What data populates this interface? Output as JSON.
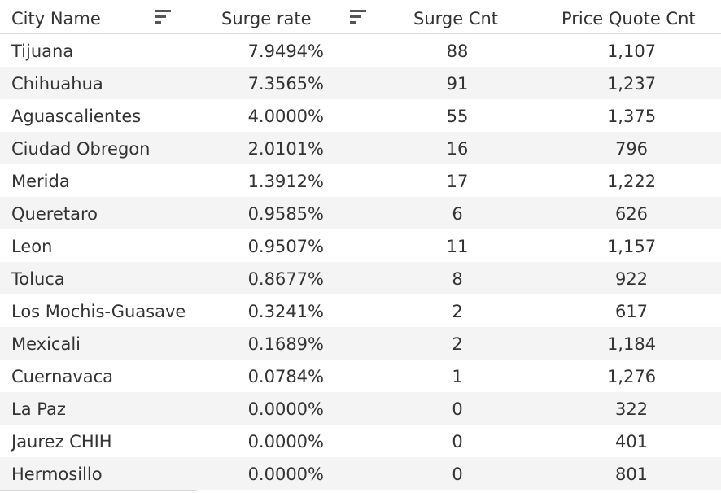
{
  "header": {
    "city_name": "City Name",
    "surge_rate": "Surge rate",
    "surge_cnt": "Surge Cnt",
    "price_quote_cnt": "Price Quote Cnt"
  },
  "icons": {
    "sort": "sort-descending-icon"
  },
  "rows": [
    {
      "city": "Tijuana",
      "rate": "7.9494%",
      "cnt": "88",
      "quote": "1,107"
    },
    {
      "city": "Chihuahua",
      "rate": "7.3565%",
      "cnt": "91",
      "quote": "1,237"
    },
    {
      "city": "Aguascalientes",
      "rate": "4.0000%",
      "cnt": "55",
      "quote": "1,375"
    },
    {
      "city": "Ciudad Obregon",
      "rate": "2.0101%",
      "cnt": "16",
      "quote": "796"
    },
    {
      "city": "Merida",
      "rate": "1.3912%",
      "cnt": "17",
      "quote": "1,222"
    },
    {
      "city": "Queretaro",
      "rate": "0.9585%",
      "cnt": "6",
      "quote": "626"
    },
    {
      "city": "Leon",
      "rate": "0.9507%",
      "cnt": "11",
      "quote": "1,157"
    },
    {
      "city": "Toluca",
      "rate": "0.8677%",
      "cnt": "8",
      "quote": "922"
    },
    {
      "city": "Los Mochis-Guasave",
      "rate": "0.3241%",
      "cnt": "2",
      "quote": "617"
    },
    {
      "city": "Mexicali",
      "rate": "0.1689%",
      "cnt": "2",
      "quote": "1,184"
    },
    {
      "city": "Cuernavaca",
      "rate": "0.0784%",
      "cnt": "1",
      "quote": "1,276"
    },
    {
      "city": "La Paz",
      "rate": "0.0000%",
      "cnt": "0",
      "quote": "322"
    },
    {
      "city": "Jaurez CHIH",
      "rate": "0.0000%",
      "cnt": "0",
      "quote": "401"
    },
    {
      "city": "Hermosillo",
      "rate": "0.0000%",
      "cnt": "0",
      "quote": "801"
    }
  ]
}
